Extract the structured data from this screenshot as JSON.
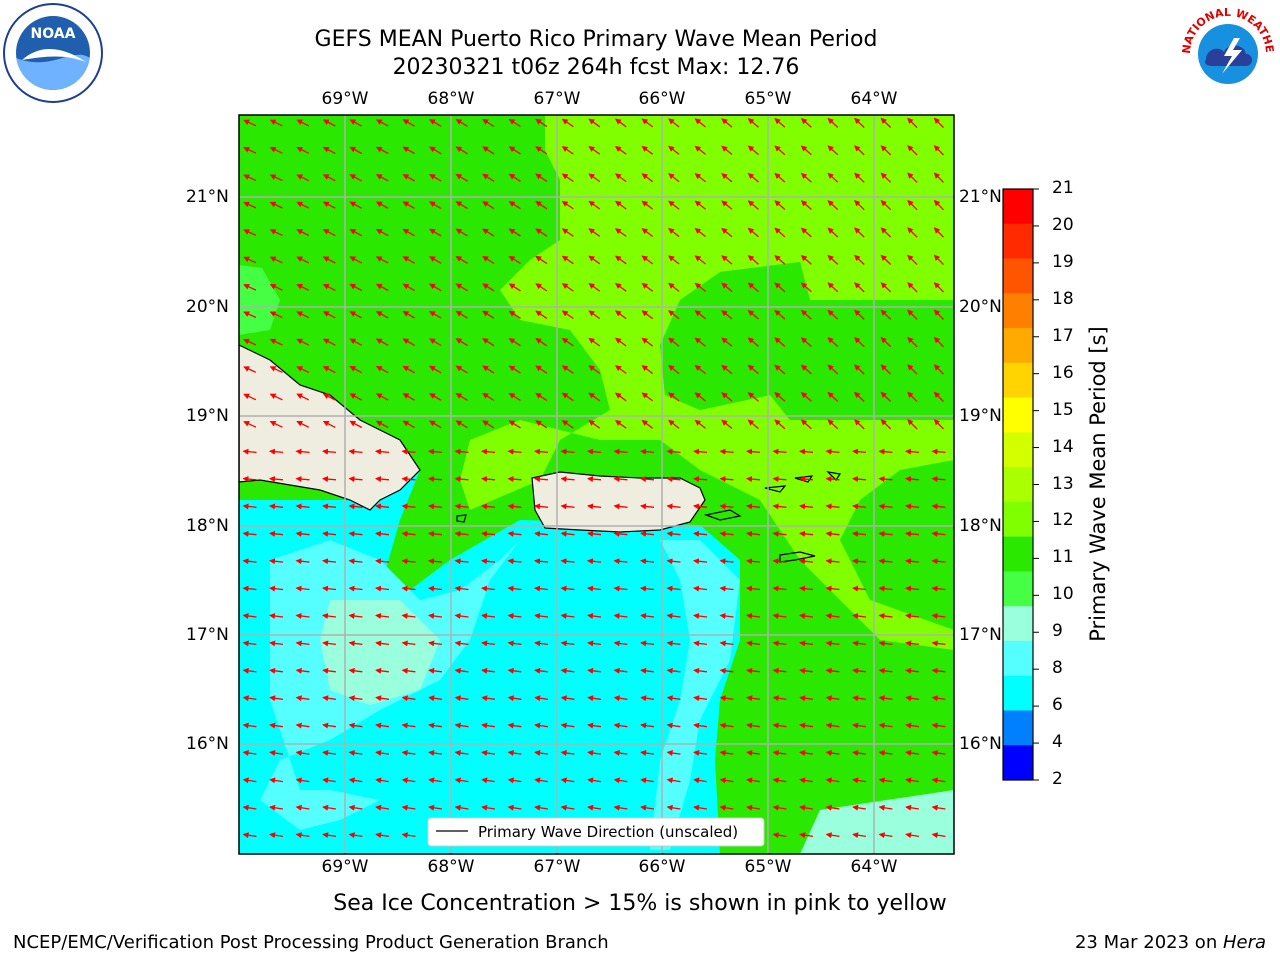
{
  "title_line1": "GEFS MEAN Puerto Rico Primary Wave Mean Period",
  "title_line2": "20230321 t06z 264h fcst   Max: 12.76",
  "lon_labels": [
    "69°W",
    "68°W",
    "67°W",
    "66°W",
    "65°W",
    "64°W"
  ],
  "lat_labels": [
    "21°N",
    "20°N",
    "19°N",
    "18°N",
    "17°N",
    "16°N"
  ],
  "legend_label": "Primary Wave Direction (unscaled)",
  "colorbar": {
    "label": "Primary Wave Mean Period [s]",
    "ticks": [
      "21",
      "20",
      "19",
      "18",
      "17",
      "16",
      "15",
      "14",
      "13",
      "12",
      "11",
      "10",
      "9",
      "8",
      "6",
      "4",
      "2"
    ],
    "colors": [
      "#ff0000",
      "#ff2a00",
      "#ff5500",
      "#ff7f00",
      "#ffaa00",
      "#ffd400",
      "#ffff00",
      "#d4ff00",
      "#aaff00",
      "#7fff00",
      "#2ae800",
      "#44ff44",
      "#99ffdd",
      "#55ffff",
      "#00ffff",
      "#0080ff",
      "#0000ff"
    ]
  },
  "note": "Sea Ice Concentration > 15% is shown in pink to yellow",
  "footer_left": "NCEP/EMC/Verification Post Processing Product Generation Branch",
  "footer_date": "23 Mar 2023 on ",
  "footer_machine": "Hera",
  "logos": {
    "left": "NOAA",
    "right_text": "NATIONAL WEATHER SERVICE"
  },
  "arrow_color": "#ff0000"
}
